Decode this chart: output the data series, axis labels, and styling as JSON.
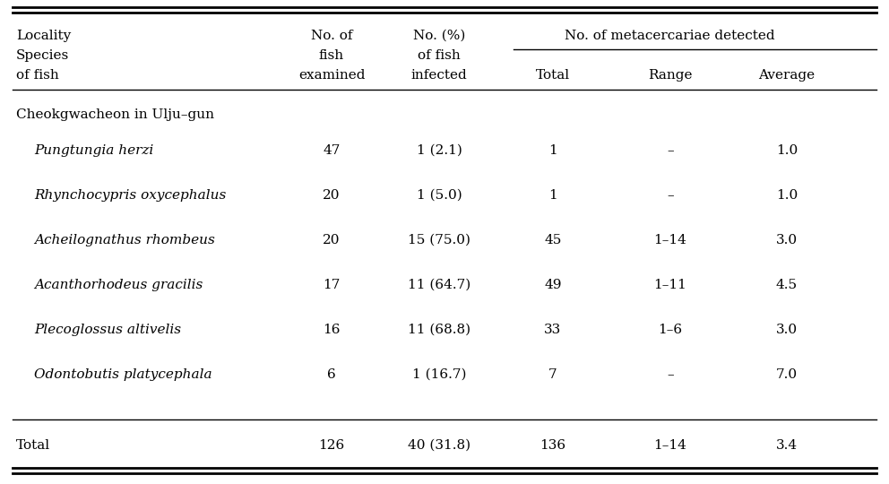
{
  "header_col1": [
    "Locality",
    "Species",
    "of fish"
  ],
  "header_col2": [
    "No. of",
    "fish",
    "examined"
  ],
  "header_col3": [
    "No. (%)",
    "of fish",
    "infected"
  ],
  "header_metacercariae": "No. of metacercariae detected",
  "header_total": "Total",
  "header_range": "Range",
  "header_average": "Average",
  "section_label": "Cheokgwacheon in Ulju–gun",
  "rows": [
    {
      "species": "Pungtungia herzi",
      "examined": "47",
      "infected": "1 (2.1)",
      "total": "1",
      "range": "–",
      "average": "1.0"
    },
    {
      "species": "Rhynchocypris oxycephalus",
      "examined": "20",
      "infected": "1 (5.0)",
      "total": "1",
      "range": "–",
      "average": "1.0"
    },
    {
      "species": "Acheilognathus rhombeus",
      "examined": "20",
      "infected": "15 (75.0)",
      "total": "45",
      "range": "1–14",
      "average": "3.0"
    },
    {
      "species": "Acanthorhodeus gracilis",
      "examined": "17",
      "infected": "11 (64.7)",
      "total": "49",
      "range": "1–11",
      "average": "4.5"
    },
    {
      "species": "Plecoglossus altivelis",
      "examined": "16",
      "infected": "11 (68.8)",
      "total": "33",
      "range": "1–6",
      "average": "3.0"
    },
    {
      "species": "Odontobutis platycephala",
      "examined": "6",
      "infected": "1 (16.7)",
      "total": "7",
      "range": "–",
      "average": "7.0"
    }
  ],
  "total_row": {
    "label": "Total",
    "examined": "126",
    "infected": "40 (31.8)",
    "total": "136",
    "range": "1–14",
    "average": "3.4"
  },
  "bg_color": "#ffffff",
  "text_color": "#000000",
  "font_size": 11.0,
  "line_lw_thick": 2.0,
  "line_lw_thin": 1.0
}
